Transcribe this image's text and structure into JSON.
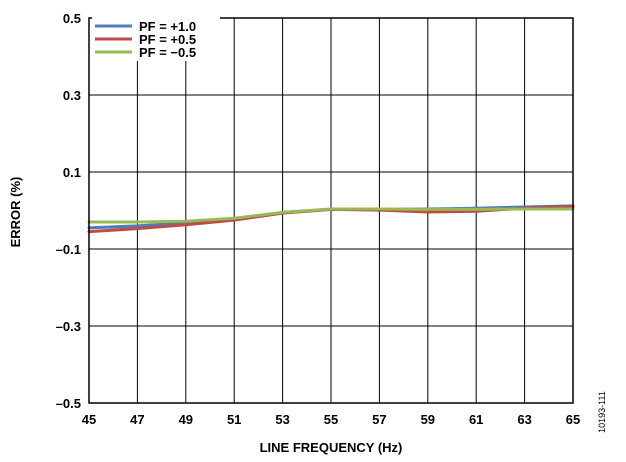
{
  "chart_data": {
    "type": "line",
    "xlabel": "LINE FREQUENCY (Hz)",
    "ylabel": "ERROR (%)",
    "xlim": [
      45,
      65
    ],
    "ylim": [
      -0.5,
      0.5
    ],
    "x_ticks": [
      "45",
      "47",
      "49",
      "51",
      "53",
      "55",
      "57",
      "59",
      "61",
      "63",
      "65"
    ],
    "y_ticks": [
      "0.5",
      "0.3",
      "0.1",
      "–0.1",
      "–0.3",
      "–0.5"
    ],
    "y_tick_values": [
      0.5,
      0.3,
      0.1,
      -0.1,
      -0.3,
      -0.5
    ],
    "grid": true,
    "legend_position": "top-left",
    "figure_id": "10193-111",
    "x": [
      45,
      47,
      49,
      51,
      53,
      55,
      57,
      59,
      61,
      63,
      65
    ],
    "series": [
      {
        "name": "PF = +1.0",
        "color": "#4a7ebb",
        "values": [
          -0.045,
          -0.04,
          -0.032,
          -0.022,
          -0.005,
          0.003,
          0.003,
          0.004,
          0.006,
          0.009,
          0.012
        ]
      },
      {
        "name": "PF = +0.5",
        "color": "#be4b48",
        "values": [
          -0.055,
          -0.047,
          -0.037,
          -0.025,
          -0.007,
          0.003,
          0.001,
          -0.004,
          -0.002,
          0.006,
          0.01
        ]
      },
      {
        "name": "PF = −0.5",
        "color": "#98b954",
        "values": [
          -0.03,
          -0.03,
          -0.028,
          -0.02,
          -0.005,
          0.004,
          0.004,
          0.003,
          0.003,
          0.004,
          0.004
        ]
      }
    ]
  }
}
